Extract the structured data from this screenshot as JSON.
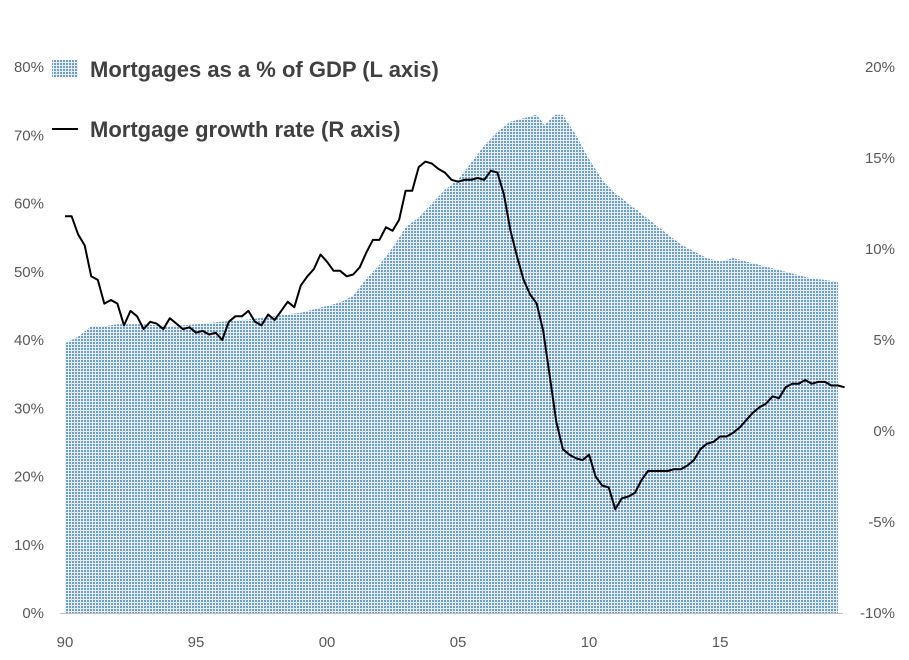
{
  "chart_data": {
    "type": "area",
    "x_tick_labels": [
      "90",
      "95",
      "00",
      "05",
      "10",
      "15"
    ],
    "x_ticks": [
      1990,
      1995,
      2000,
      2005,
      2010,
      2015
    ],
    "x_range": [
      1990,
      2019.5
    ],
    "left_axis": {
      "range": [
        0,
        80
      ],
      "ticks": [
        0,
        10,
        20,
        30,
        40,
        50,
        60,
        70,
        80
      ],
      "tick_labels": [
        "0%",
        "10%",
        "20%",
        "30%",
        "40%",
        "50%",
        "60%",
        "70%",
        "80%"
      ]
    },
    "right_axis": {
      "range": [
        -10,
        20
      ],
      "ticks": [
        -10,
        -5,
        0,
        5,
        10,
        15,
        20
      ],
      "tick_labels": [
        "-10%",
        "-5%",
        "0%",
        "5%",
        "10%",
        "15%",
        "20%"
      ]
    },
    "legend": {
      "placement": "top-left"
    },
    "series": [
      {
        "name": "Mortgages as a % of GDP  (L axis)",
        "type": "area",
        "axis": "left",
        "color": "#6f9ec8",
        "points": [
          [
            1990.0,
            39.5
          ],
          [
            1990.5,
            40.5
          ],
          [
            1991.0,
            42.0
          ],
          [
            1991.5,
            42.0
          ],
          [
            1992.0,
            42.3
          ],
          [
            1993.0,
            42.3
          ],
          [
            1994.0,
            42.0
          ],
          [
            1995.0,
            42.3
          ],
          [
            1996.0,
            42.7
          ],
          [
            1997.0,
            43.0
          ],
          [
            1998.0,
            43.5
          ],
          [
            1999.0,
            44.0
          ],
          [
            2000.0,
            45.0
          ],
          [
            2000.5,
            45.5
          ],
          [
            2001.0,
            46.5
          ],
          [
            2001.5,
            49.0
          ],
          [
            2002.0,
            51.0
          ],
          [
            2002.5,
            53.5
          ],
          [
            2003.0,
            56.5
          ],
          [
            2003.5,
            58.0
          ],
          [
            2004.0,
            60.0
          ],
          [
            2004.5,
            62.0
          ],
          [
            2005.0,
            63.5
          ],
          [
            2005.5,
            66.0
          ],
          [
            2006.0,
            68.5
          ],
          [
            2006.5,
            70.5
          ],
          [
            2007.0,
            72.0
          ],
          [
            2007.5,
            72.5
          ],
          [
            2008.0,
            73.0
          ],
          [
            2008.3,
            71.5
          ],
          [
            2008.7,
            73.0
          ],
          [
            2009.0,
            73.0
          ],
          [
            2009.5,
            70.0
          ],
          [
            2010.0,
            66.5
          ],
          [
            2010.5,
            63.5
          ],
          [
            2011.0,
            61.5
          ],
          [
            2011.5,
            60.0
          ],
          [
            2012.0,
            58.5
          ],
          [
            2012.5,
            57.0
          ],
          [
            2013.0,
            55.5
          ],
          [
            2013.5,
            54.0
          ],
          [
            2014.0,
            53.0
          ],
          [
            2014.5,
            52.0
          ],
          [
            2015.0,
            51.5
          ],
          [
            2015.5,
            52.0
          ],
          [
            2016.0,
            51.5
          ],
          [
            2016.5,
            51.0
          ],
          [
            2017.0,
            50.5
          ],
          [
            2017.5,
            50.0
          ],
          [
            2018.0,
            49.5
          ],
          [
            2018.5,
            49.0
          ],
          [
            2019.0,
            48.8
          ],
          [
            2019.5,
            48.5
          ]
        ]
      },
      {
        "name": "Mortgage growth rate (R axis)",
        "type": "line",
        "axis": "right",
        "color": "#000000",
        "points": [
          [
            1990.0,
            11.8
          ],
          [
            1990.25,
            11.8
          ],
          [
            1990.5,
            10.8
          ],
          [
            1990.75,
            10.2
          ],
          [
            1991.0,
            8.5
          ],
          [
            1991.25,
            8.3
          ],
          [
            1991.5,
            7.0
          ],
          [
            1991.75,
            7.2
          ],
          [
            1992.0,
            7.0
          ],
          [
            1992.25,
            5.8
          ],
          [
            1992.5,
            6.6
          ],
          [
            1992.75,
            6.3
          ],
          [
            1993.0,
            5.6
          ],
          [
            1993.25,
            6.0
          ],
          [
            1993.5,
            5.9
          ],
          [
            1993.75,
            5.6
          ],
          [
            1994.0,
            6.2
          ],
          [
            1994.25,
            5.9
          ],
          [
            1994.5,
            5.6
          ],
          [
            1994.75,
            5.7
          ],
          [
            1995.0,
            5.4
          ],
          [
            1995.25,
            5.5
          ],
          [
            1995.5,
            5.3
          ],
          [
            1995.75,
            5.4
          ],
          [
            1996.0,
            5.0
          ],
          [
            1996.25,
            6.0
          ],
          [
            1996.5,
            6.3
          ],
          [
            1996.75,
            6.3
          ],
          [
            1997.0,
            6.6
          ],
          [
            1997.25,
            6.0
          ],
          [
            1997.5,
            5.8
          ],
          [
            1997.75,
            6.4
          ],
          [
            1998.0,
            6.1
          ],
          [
            1998.25,
            6.6
          ],
          [
            1998.5,
            7.1
          ],
          [
            1998.75,
            6.8
          ],
          [
            1999.0,
            8.0
          ],
          [
            1999.25,
            8.5
          ],
          [
            1999.5,
            8.9
          ],
          [
            1999.75,
            9.7
          ],
          [
            2000.0,
            9.3
          ],
          [
            2000.25,
            8.8
          ],
          [
            2000.5,
            8.8
          ],
          [
            2000.75,
            8.5
          ],
          [
            2001.0,
            8.6
          ],
          [
            2001.25,
            9.0
          ],
          [
            2001.5,
            9.8
          ],
          [
            2001.75,
            10.5
          ],
          [
            2002.0,
            10.5
          ],
          [
            2002.25,
            11.2
          ],
          [
            2002.5,
            11.0
          ],
          [
            2002.75,
            11.6
          ],
          [
            2003.0,
            13.2
          ],
          [
            2003.25,
            13.2
          ],
          [
            2003.5,
            14.5
          ],
          [
            2003.75,
            14.8
          ],
          [
            2004.0,
            14.7
          ],
          [
            2004.25,
            14.4
          ],
          [
            2004.5,
            14.2
          ],
          [
            2004.75,
            13.8
          ],
          [
            2005.0,
            13.7
          ],
          [
            2005.25,
            13.8
          ],
          [
            2005.5,
            13.8
          ],
          [
            2005.75,
            13.9
          ],
          [
            2006.0,
            13.8
          ],
          [
            2006.25,
            14.3
          ],
          [
            2006.5,
            14.2
          ],
          [
            2006.75,
            13.0
          ],
          [
            2007.0,
            11.0
          ],
          [
            2007.25,
            9.6
          ],
          [
            2007.5,
            8.3
          ],
          [
            2007.75,
            7.5
          ],
          [
            2008.0,
            7.0
          ],
          [
            2008.25,
            5.5
          ],
          [
            2008.5,
            3.0
          ],
          [
            2008.75,
            0.5
          ],
          [
            2009.0,
            -1.0
          ],
          [
            2009.25,
            -1.3
          ],
          [
            2009.5,
            -1.5
          ],
          [
            2009.75,
            -1.6
          ],
          [
            2010.0,
            -1.3
          ],
          [
            2010.25,
            -2.5
          ],
          [
            2010.5,
            -3.0
          ],
          [
            2010.75,
            -3.1
          ],
          [
            2011.0,
            -4.3
          ],
          [
            2011.25,
            -3.7
          ],
          [
            2011.5,
            -3.6
          ],
          [
            2011.75,
            -3.4
          ],
          [
            2012.0,
            -2.7
          ],
          [
            2012.25,
            -2.2
          ],
          [
            2012.5,
            -2.2
          ],
          [
            2012.75,
            -2.2
          ],
          [
            2013.0,
            -2.2
          ],
          [
            2013.25,
            -2.1
          ],
          [
            2013.5,
            -2.1
          ],
          [
            2013.75,
            -1.9
          ],
          [
            2014.0,
            -1.6
          ],
          [
            2014.25,
            -1.0
          ],
          [
            2014.5,
            -0.7
          ],
          [
            2014.75,
            -0.6
          ],
          [
            2015.0,
            -0.3
          ],
          [
            2015.25,
            -0.3
          ],
          [
            2015.5,
            -0.1
          ],
          [
            2015.75,
            0.2
          ],
          [
            2016.0,
            0.6
          ],
          [
            2016.25,
            1.0
          ],
          [
            2016.5,
            1.3
          ],
          [
            2016.75,
            1.5
          ],
          [
            2017.0,
            1.9
          ],
          [
            2017.25,
            1.8
          ],
          [
            2017.5,
            2.4
          ],
          [
            2017.75,
            2.6
          ],
          [
            2018.0,
            2.6
          ],
          [
            2018.25,
            2.8
          ],
          [
            2018.5,
            2.6
          ],
          [
            2018.75,
            2.7
          ],
          [
            2019.0,
            2.7
          ],
          [
            2019.25,
            2.5
          ],
          [
            2019.5,
            2.5
          ],
          [
            2019.75,
            2.4
          ]
        ]
      }
    ]
  }
}
